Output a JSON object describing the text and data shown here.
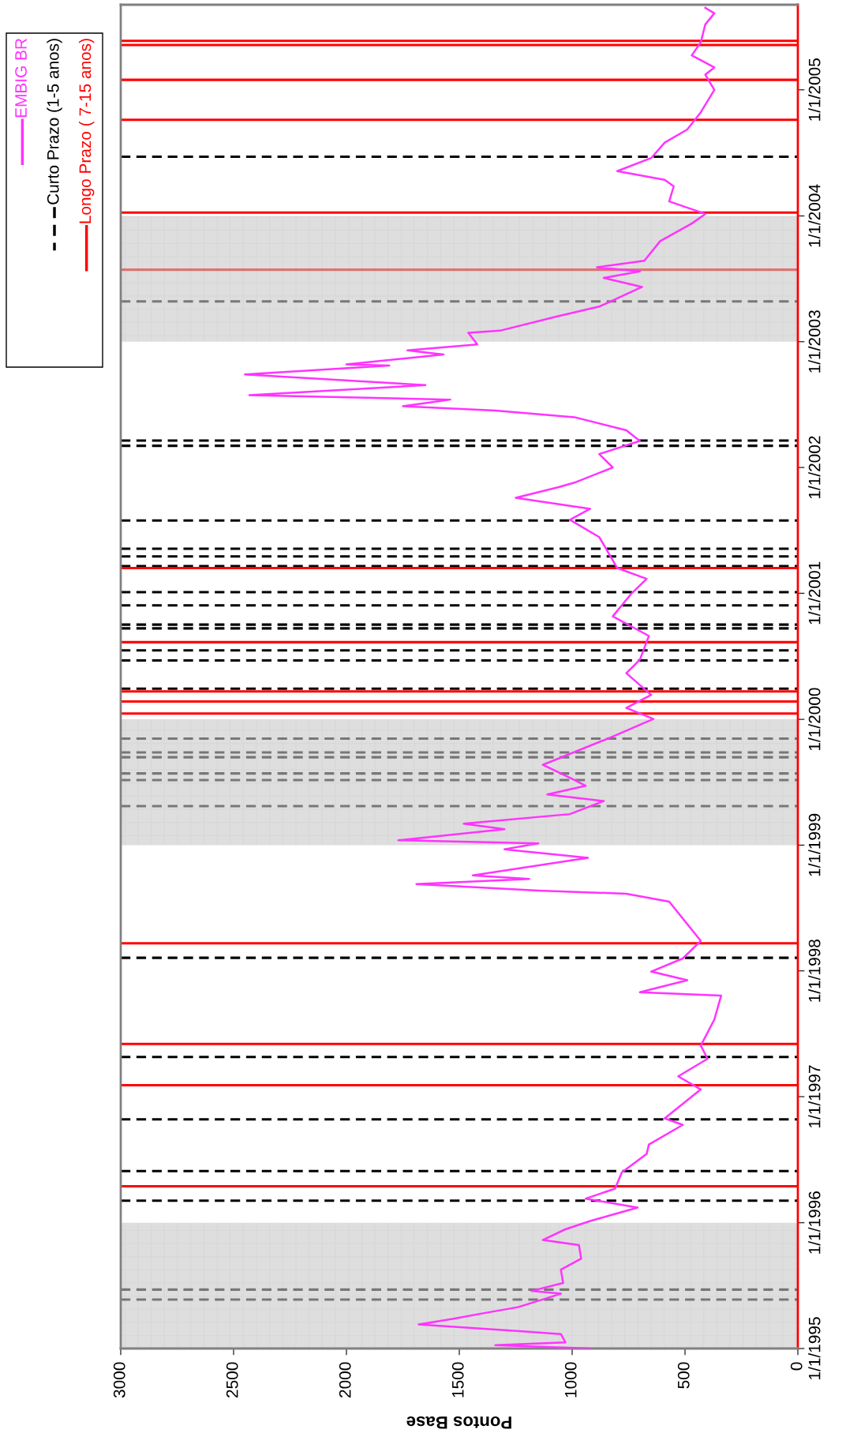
{
  "chart_data": {
    "type": "line",
    "orientation": "horizontal",
    "xlabel": "Pontos Base",
    "x": [
      "1995-01-01",
      "1995-01-11",
      "1995-01-19",
      "1995-02-12",
      "1995-02-20",
      "1995-03-12",
      "1995-03-28",
      "1995-04-15",
      "1995-05-01",
      "1995-06-09",
      "1995-06-17",
      "1995-07-10",
      "1995-08-18",
      "1995-09-19",
      "1995-10-28",
      "1995-11-12",
      "1995-12-13",
      "1996-01-06",
      "1996-01-21",
      "1996-02-14",
      "1996-03-11",
      "1996-04-09",
      "1996-05-26",
      "1996-07-19",
      "1996-08-15",
      "1996-10-11",
      "1996-10-30",
      "1997-01-22",
      "1997-03-01",
      "1997-04-21",
      "1997-05-29",
      "1997-08-13",
      "1997-10-21",
      "1997-10-31",
      "1997-12-05",
      "1997-12-30",
      "1998-02-06",
      "1998-03-29",
      "1998-07-21",
      "1998-08-13",
      "1998-08-22",
      "1998-09-10",
      "1998-09-25",
      "1998-10-05",
      "1998-11-25",
      "1998-12-20",
      "1999-01-06",
      "1999-01-15",
      "1999-02-16",
      "1999-03-04",
      "1999-04-01",
      "1999-05-09",
      "1999-05-28",
      "1999-06-22",
      "1999-07-09",
      "1999-08-22",
      "1999-11-12",
      "2000-01-02",
      "2000-02-03",
      "2000-03-12",
      "2000-05-14",
      "2000-06-22",
      "2000-08-30",
      "2000-10-26",
      "2000-12-29",
      "2001-02-12",
      "2001-03-15",
      "2001-06-13",
      "2001-08-02",
      "2001-09-03",
      "2001-10-05",
      "2001-11-05",
      "2001-11-18",
      "2002-01-01",
      "2002-02-09",
      "2002-03-19",
      "2002-04-19",
      "2002-05-27",
      "2002-06-15",
      "2002-06-28",
      "2002-07-17",
      "2002-07-30",
      "2002-08-28",
      "2002-09-28",
      "2002-10-24",
      "2002-10-27",
      "2002-11-25",
      "2002-12-07",
      "2002-12-24",
      "2003-01-27",
      "2003-02-02",
      "2003-03-15",
      "2003-04-13",
      "2003-06-09",
      "2003-07-05",
      "2003-07-24",
      "2003-08-05",
      "2003-08-24",
      "2003-10-20",
      "2003-12-10",
      "2004-01-07",
      "2004-02-12",
      "2004-03-27",
      "2004-04-15",
      "2004-05-10",
      "2004-06-17",
      "2004-08-01",
      "2004-09-08",
      "2004-10-28",
      "2005-01-01",
      "2005-02-14",
      "2005-03-07",
      "2005-04-11",
      "2005-05-19",
      "2005-07-10",
      "2005-08-11",
      "2005-08-27"
    ],
    "series": [
      {
        "name": "EMBIG BR",
        "color": "#ff33ff",
        "values": [
          920,
          1340,
          1030,
          1050,
          1220,
          1680,
          1530,
          1380,
          1240,
          1050,
          1180,
          1040,
          1050,
          960,
          970,
          1130,
          1030,
          920,
          840,
          710,
          940,
          810,
          780,
          670,
          660,
          510,
          590,
          430,
          530,
          400,
          430,
          370,
          340,
          700,
          490,
          650,
          510,
          430,
          570,
          760,
          1150,
          1690,
          1190,
          1440,
          930,
          1300,
          1150,
          1770,
          1300,
          1480,
          1010,
          860,
          1110,
          940,
          990,
          1130,
          820,
          640,
          760,
          650,
          760,
          700,
          660,
          820,
          740,
          670,
          800,
          880,
          1010,
          920,
          1250,
          1060,
          990,
          820,
          880,
          700,
          760,
          990,
          1340,
          1750,
          1540,
          2430,
          1650,
          2450,
          1810,
          2000,
          1570,
          1730,
          1420,
          1460,
          1320,
          1070,
          880,
          690,
          860,
          700,
          890,
          680,
          610,
          470,
          410,
          570,
          550,
          590,
          800,
          650,
          590,
          490,
          430,
          370,
          410,
          370,
          470,
          430,
          410,
          370,
          410
        ]
      }
    ],
    "xlim": [
      3000,
      0
    ],
    "xticks": [
      3000,
      2500,
      2000,
      1500,
      1000,
      500,
      0
    ],
    "ylim": [
      "1995-01-01",
      "2005-09-05"
    ],
    "yticks": [
      {
        "value": "1995-01-01",
        "label": "1/1/1995"
      },
      {
        "value": "1996-01-01",
        "label": "1/1/1996"
      },
      {
        "value": "1997-01-01",
        "label": "1/1/1997"
      },
      {
        "value": "1998-01-01",
        "label": "1/1/1998"
      },
      {
        "value": "1999-01-01",
        "label": "1/1/1999"
      },
      {
        "value": "2000-01-01",
        "label": "1/1/2000"
      },
      {
        "value": "2001-01-01",
        "label": "1/1/2001"
      },
      {
        "value": "2002-01-01",
        "label": "1/1/2002"
      },
      {
        "value": "2003-01-01",
        "label": "1/1/2003"
      },
      {
        "value": "2004-01-01",
        "label": "1/1/2004"
      },
      {
        "value": "2005-01-01",
        "label": "1/1/2005"
      }
    ],
    "bands": [
      {
        "axis": "y",
        "from": "1995-01-01",
        "to": "1996-01-01",
        "color": "#c8c8c8"
      },
      {
        "axis": "y",
        "from": "1999-01-01",
        "to": "2000-01-01",
        "color": "#c8c8c8"
      },
      {
        "axis": "y",
        "from": "2003-01-01",
        "to": "2004-01-01",
        "color": "#c8c8c8"
      }
    ],
    "ref_lines": [
      {
        "axis": "y",
        "value": "1995-05-23",
        "color": "#000000",
        "line_style": "dashed",
        "label": "Curto Prazo (1-5 anos)"
      },
      {
        "axis": "y",
        "value": "1995-06-21",
        "color": "#000000",
        "line_style": "dashed"
      },
      {
        "axis": "y",
        "value": "1996-03-05",
        "color": "#000000",
        "line_style": "dashed"
      },
      {
        "axis": "y",
        "value": "1996-05-30",
        "color": "#000000",
        "line_style": "dashed"
      },
      {
        "axis": "y",
        "value": "1996-10-27",
        "color": "#000000",
        "line_style": "dashed"
      },
      {
        "axis": "y",
        "value": "1997-04-26",
        "color": "#000000",
        "line_style": "dashed"
      },
      {
        "axis": "y",
        "value": "1998-02-08",
        "color": "#000000",
        "line_style": "dashed"
      },
      {
        "axis": "y",
        "value": "1999-04-24",
        "color": "#000000",
        "line_style": "dashed"
      },
      {
        "axis": "y",
        "value": "1999-07-09",
        "color": "#000000",
        "line_style": "dashed"
      },
      {
        "axis": "y",
        "value": "1999-07-28",
        "color": "#000000",
        "line_style": "dashed"
      },
      {
        "axis": "y",
        "value": "1999-09-13",
        "color": "#000000",
        "line_style": "dashed"
      },
      {
        "axis": "y",
        "value": "1999-09-27",
        "color": "#000000",
        "line_style": "dashed"
      },
      {
        "axis": "y",
        "value": "1999-11-06",
        "color": "#000000",
        "line_style": "dashed"
      },
      {
        "axis": "y",
        "value": "2000-03-30",
        "color": "#000000",
        "line_style": "dashed"
      },
      {
        "axis": "y",
        "value": "2000-06-20",
        "color": "#000000",
        "line_style": "dashed"
      },
      {
        "axis": "y",
        "value": "2000-07-19",
        "color": "#000000",
        "line_style": "dashed"
      },
      {
        "axis": "y",
        "value": "2000-09-21",
        "color": "#000000",
        "line_style": "dashed"
      },
      {
        "axis": "y",
        "value": "2000-10-02",
        "color": "#000000",
        "line_style": "dashed"
      },
      {
        "axis": "y",
        "value": "2000-11-27",
        "color": "#000000",
        "line_style": "dashed"
      },
      {
        "axis": "y",
        "value": "2001-01-04",
        "color": "#000000",
        "line_style": "dashed"
      },
      {
        "axis": "y",
        "value": "2001-03-21",
        "color": "#000000",
        "line_style": "dashed"
      },
      {
        "axis": "y",
        "value": "2001-04-18",
        "color": "#000000",
        "line_style": "dashed"
      },
      {
        "axis": "y",
        "value": "2001-05-10",
        "color": "#000000",
        "line_style": "dashed"
      },
      {
        "axis": "y",
        "value": "2001-07-31",
        "color": "#000000",
        "line_style": "dashed"
      },
      {
        "axis": "y",
        "value": "2002-03-05",
        "color": "#000000",
        "line_style": "dashed"
      },
      {
        "axis": "y",
        "value": "2002-03-20",
        "color": "#000000",
        "line_style": "dashed"
      },
      {
        "axis": "y",
        "value": "2003-04-28",
        "color": "#000000",
        "line_style": "dashed"
      },
      {
        "axis": "y",
        "value": "2004-06-21",
        "color": "#000000",
        "line_style": "dashed"
      },
      {
        "axis": "y",
        "value": "1996-04-16",
        "color": "#ff0000",
        "line_style": "solid",
        "label": "Longo Prazo ( 7-15 anos)"
      },
      {
        "axis": "y",
        "value": "1997-02-03",
        "color": "#ff0000",
        "line_style": "solid"
      },
      {
        "axis": "y",
        "value": "1997-06-03",
        "color": "#ff0000",
        "line_style": "solid"
      },
      {
        "axis": "y",
        "value": "1998-03-22",
        "color": "#ff0000",
        "line_style": "solid"
      },
      {
        "axis": "y",
        "value": "2000-01-18",
        "color": "#ff0000",
        "line_style": "solid"
      },
      {
        "axis": "y",
        "value": "2000-02-22",
        "color": "#ff0000",
        "line_style": "solid"
      },
      {
        "axis": "y",
        "value": "2000-03-22",
        "color": "#ff0000",
        "line_style": "solid"
      },
      {
        "axis": "y",
        "value": "2000-08-12",
        "color": "#ff0000",
        "line_style": "solid"
      },
      {
        "axis": "y",
        "value": "2001-03-15",
        "color": "#ff0000",
        "line_style": "solid"
      },
      {
        "axis": "y",
        "value": "2003-07-29",
        "color": "#ff0000",
        "line_style": "solid"
      },
      {
        "axis": "y",
        "value": "2004-01-11",
        "color": "#ff0000",
        "line_style": "solid"
      },
      {
        "axis": "y",
        "value": "2004-10-06",
        "color": "#ff0000",
        "line_style": "solid"
      },
      {
        "axis": "y",
        "value": "2005-01-30",
        "color": "#ff0000",
        "line_style": "solid"
      },
      {
        "axis": "y",
        "value": "2005-05-11",
        "color": "#ff0000",
        "line_style": "solid"
      },
      {
        "axis": "y",
        "value": "2005-05-23",
        "color": "#ff0000",
        "line_style": "solid"
      }
    ],
    "legend": "top left",
    "grid": false,
    "line_style": "solid",
    "marker": "none"
  }
}
